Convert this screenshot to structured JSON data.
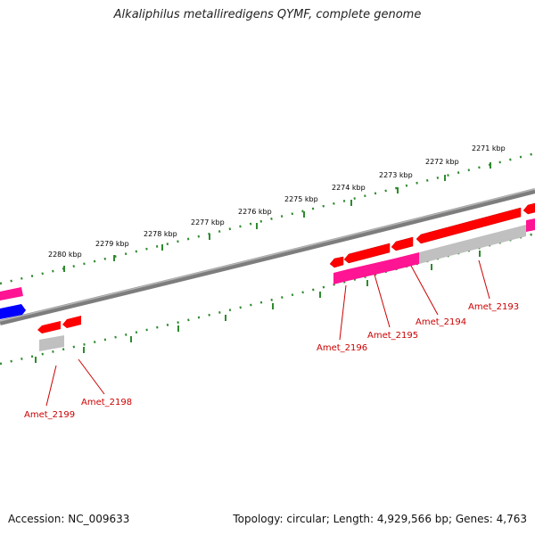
{
  "header": {
    "title": "Alkaliphilus metalliredigens QYMF, complete genome"
  },
  "footer": {
    "accession_label": "Accession: NC_009633",
    "summary_label": "Topology: circular; Length: 4,929,566 bp; Genes: 4,763"
  },
  "colors": {
    "backbone": "#7d7d7d",
    "ticks": "#2e8b2e",
    "cds_forward": "#ff0000",
    "cds_other": "#ff1493",
    "cds_blue": "#0000ff",
    "cds_gray": "#c0c0c0",
    "gene_label": "#cc0000",
    "tick_label": "#000000"
  },
  "scale": {
    "tick_labels": [
      "2271 kbp",
      "2272 kbp",
      "2273 kbp",
      "2274 kbp",
      "2275 kbp",
      "2276 kbp",
      "2277 kbp",
      "2278 kbp",
      "2279 kbp",
      "2280 kbp"
    ]
  },
  "genes": [
    {
      "locus": "Amet_2193"
    },
    {
      "locus": "Amet_2194"
    },
    {
      "locus": "Amet_2195"
    },
    {
      "locus": "Amet_2196"
    },
    {
      "locus": "Amet_2198"
    },
    {
      "locus": "Amet_2199"
    }
  ]
}
